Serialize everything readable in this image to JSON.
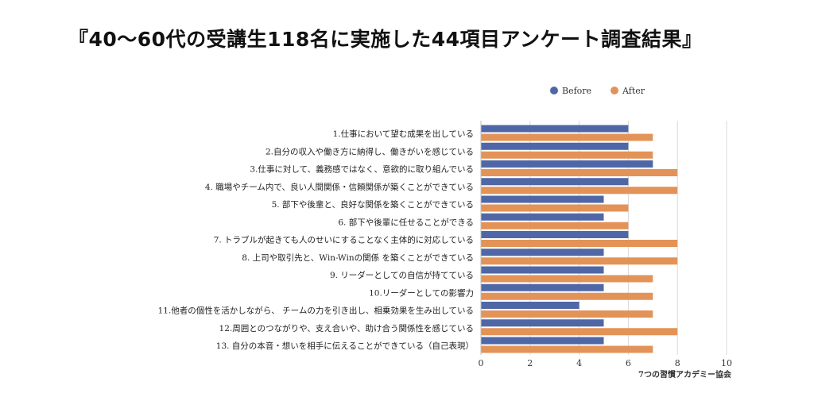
{
  "title": "『40〜60代の受講生118名に実施した44項目アンケート調査結果』",
  "chart_data": {
    "type": "bar",
    "orientation": "horizontal",
    "categories": [
      "1.仕事において望む成果を出している",
      "2.自分の収入や働き方に納得し、働きがいを感じている",
      "3.仕事に対して、義務感ではなく、意欲的に取り組んでいる",
      "4. 職場やチーム内で、良い人間関係・信頼関係が築くことができている",
      "5. 部下や後輩と、良好な関係を築くことができている",
      "6. 部下や後輩に任せることができる",
      "7. トラブルが起きても人のせいにすることなく主体的に対応している",
      "8. 上司や取引先と、Win-Winの関係 を築くことができている",
      "9. リーダーとしての自信が持てている",
      "10.リーダーとしての影響力",
      "11.他者の個性を活かしながら、 チームの力を引き出し、相乗効果を生み出している",
      "12.周囲とのつながりや、支え合いや、助け合う関係性を感じている",
      "13. 自分の本音・想いを相手に伝えることができている（自己表現）"
    ],
    "series": [
      {
        "name": "Before",
        "color": "#4f67a6",
        "values": [
          6,
          6,
          7,
          6,
          5,
          5,
          6,
          5,
          5,
          5,
          4,
          5,
          5
        ]
      },
      {
        "name": "After",
        "color": "#e39357",
        "values": [
          7,
          7,
          8,
          8,
          6,
          6,
          8,
          8,
          7,
          7,
          7,
          8,
          7
        ]
      }
    ],
    "xlim": [
      0,
      10
    ],
    "xticks": [
      "0",
      "2",
      "4",
      "6",
      "8",
      "10"
    ],
    "grid": true,
    "legend_position": "top-right",
    "source": "7つの習慣アカデミー協会"
  }
}
